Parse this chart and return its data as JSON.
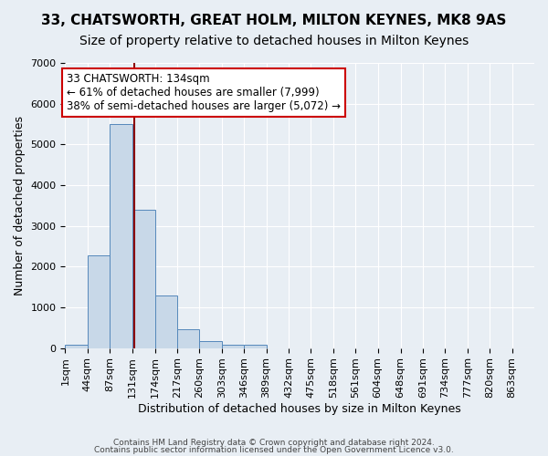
{
  "title1": "33, CHATSWORTH, GREAT HOLM, MILTON KEYNES, MK8 9AS",
  "title2": "Size of property relative to detached houses in Milton Keynes",
  "xlabel": "Distribution of detached houses by size in Milton Keynes",
  "ylabel": "Number of detached properties",
  "bar_values": [
    75,
    2280,
    5500,
    3400,
    1300,
    470,
    160,
    75,
    75,
    0,
    0,
    0,
    0,
    0,
    0,
    0,
    0,
    0,
    0,
    0
  ],
  "bin_labels": [
    "1sqm",
    "44sqm",
    "87sqm",
    "131sqm",
    "174sqm",
    "217sqm",
    "260sqm",
    "303sqm",
    "346sqm",
    "389sqm",
    "432sqm",
    "475sqm",
    "518sqm",
    "561sqm",
    "604sqm",
    "648sqm",
    "691sqm",
    "734sqm",
    "777sqm",
    "820sqm",
    "863sqm"
  ],
  "bin_edges": [
    1,
    44,
    87,
    131,
    174,
    217,
    260,
    303,
    346,
    389,
    432,
    475,
    518,
    561,
    604,
    648,
    691,
    734,
    777,
    820,
    863
  ],
  "bar_color": "#c8d8e8",
  "bar_edge_color": "#5588bb",
  "red_line_x": 134,
  "annotation_text": "33 CHATSWORTH: 134sqm\n← 61% of detached houses are smaller (7,999)\n38% of semi-detached houses are larger (5,072) →",
  "annotation_box_color": "#ffffff",
  "annotation_box_edge_color": "#cc0000",
  "ylim": [
    0,
    7000
  ],
  "yticks": [
    0,
    1000,
    2000,
    3000,
    4000,
    5000,
    6000,
    7000
  ],
  "background_color": "#e8eef4",
  "grid_color": "#ffffff",
  "footer_line1": "Contains HM Land Registry data © Crown copyright and database right 2024.",
  "footer_line2": "Contains public sector information licensed under the Open Government Licence v3.0.",
  "title1_fontsize": 11,
  "title2_fontsize": 10,
  "xlabel_fontsize": 9,
  "ylabel_fontsize": 9,
  "tick_fontsize": 8
}
